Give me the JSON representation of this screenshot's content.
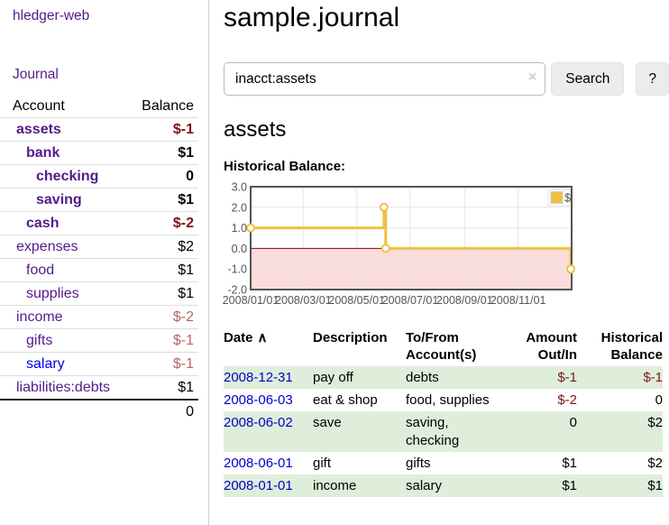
{
  "sidebar": {
    "app_title": "hledger-web",
    "journal_label": "Journal",
    "accounts": {
      "header_account": "Account",
      "header_balance": "Balance",
      "rows": [
        {
          "name": "assets",
          "balance": "$-1",
          "indent": 0,
          "bold": true,
          "neg": "strong"
        },
        {
          "name": "bank",
          "balance": "$1",
          "indent": 1,
          "bold": true,
          "neg": null
        },
        {
          "name": "checking",
          "balance": "0",
          "indent": 2,
          "bold": true,
          "neg": null
        },
        {
          "name": "saving",
          "balance": "$1",
          "indent": 2,
          "bold": true,
          "neg": null
        },
        {
          "name": "cash",
          "balance": "$-2",
          "indent": 1,
          "bold": true,
          "neg": "strong"
        },
        {
          "name": "expenses",
          "balance": "$2",
          "indent": 0,
          "bold": false,
          "neg": null
        },
        {
          "name": "food",
          "balance": "$1",
          "indent": 1,
          "bold": false,
          "neg": null
        },
        {
          "name": "supplies",
          "balance": "$1",
          "indent": 1,
          "bold": false,
          "neg": null
        },
        {
          "name": "income",
          "balance": "$-2",
          "indent": 0,
          "bold": false,
          "neg": "soft"
        },
        {
          "name": "gifts",
          "balance": "$-1",
          "indent": 1,
          "bold": false,
          "neg": "soft"
        },
        {
          "name": "salary",
          "balance": "$-1",
          "indent": 1,
          "bold": false,
          "neg": "soft",
          "unvisited": true
        },
        {
          "name": "liabilities:debts",
          "balance": "$1",
          "indent": 0,
          "bold": false,
          "neg": null
        }
      ],
      "total": "0"
    }
  },
  "main": {
    "title": "sample.journal",
    "search": {
      "value": "inacct:assets",
      "clear_icon": "×",
      "button_label": "Search",
      "help_label": "?"
    },
    "account_heading": "assets",
    "chart_label": "Historical Balance:",
    "register": {
      "header": {
        "date": "Date",
        "sort_icon": "∧",
        "description": "Description",
        "tofrom": "To/From Account(s)",
        "amount": "Amount Out/In",
        "historical": "Historical Balance"
      },
      "rows": [
        {
          "date": "2008-12-31",
          "description": "pay off",
          "accounts": "debts",
          "amount": "$-1",
          "historical": "$-1"
        },
        {
          "date": "2008-06-03",
          "description": "eat & shop",
          "accounts": "food, supplies",
          "amount": "$-2",
          "historical": "0"
        },
        {
          "date": "2008-06-02",
          "description": "save",
          "accounts": "saving, checking",
          "amount": "0",
          "historical": "$2"
        },
        {
          "date": "2008-06-01",
          "description": "gift",
          "accounts": "gifts",
          "amount": "$1",
          "historical": "$2"
        },
        {
          "date": "2008-01-01",
          "description": "income",
          "accounts": "salary",
          "amount": "$1",
          "historical": "$1"
        }
      ]
    }
  },
  "chart_data": {
    "type": "line",
    "step": true,
    "title": "Historical Balance",
    "series": [
      {
        "name": "$",
        "color": "#edc240",
        "points": [
          {
            "date": "2008-01-01",
            "day": 0,
            "value": 1
          },
          {
            "date": "2008-06-01",
            "day": 152,
            "value": 2
          },
          {
            "date": "2008-06-02",
            "day": 153,
            "value": 2
          },
          {
            "date": "2008-06-03",
            "day": 154,
            "value": 0
          },
          {
            "date": "2008-12-31",
            "day": 365,
            "value": -1
          }
        ]
      }
    ],
    "ylim": [
      -2,
      3
    ],
    "yticks": [
      {
        "label": "3.0",
        "value": 3
      },
      {
        "label": "2.0",
        "value": 2
      },
      {
        "label": "1.0",
        "value": 1
      },
      {
        "label": "0.0",
        "value": 0
      },
      {
        "label": "-1.0",
        "value": -1
      },
      {
        "label": "-2.0",
        "value": -2
      }
    ],
    "xlim_days": [
      0,
      366
    ],
    "xticks": [
      {
        "label": "2008/01/01",
        "day": 0
      },
      {
        "label": "2008/03/01",
        "day": 60
      },
      {
        "label": "2008/05/01",
        "day": 121
      },
      {
        "label": "2008/07/01",
        "day": 182
      },
      {
        "label": "2008/09/01",
        "day": 244
      },
      {
        "label": "2008/11/01",
        "day": 305
      }
    ],
    "legend": {
      "label": "$",
      "swatch_color": "#edc240",
      "position": "top-right"
    },
    "grid": true,
    "zero_line_color": "#8b0000",
    "negative_region_color": "#fbdcdc",
    "grid_color": "#e6e6e6",
    "border_color": "#545454",
    "tick_label_color": "#545454"
  },
  "colors": {
    "link_purple": "#551a8b",
    "link_blue": "#0000ee",
    "date_link_blue": "#0000cc",
    "negative_strong": "#7f1019",
    "negative_soft": "#b5656a",
    "register_negative": "#7b151c",
    "row_stripe_green": "#dfeeda",
    "series_gold": "#edc240"
  }
}
